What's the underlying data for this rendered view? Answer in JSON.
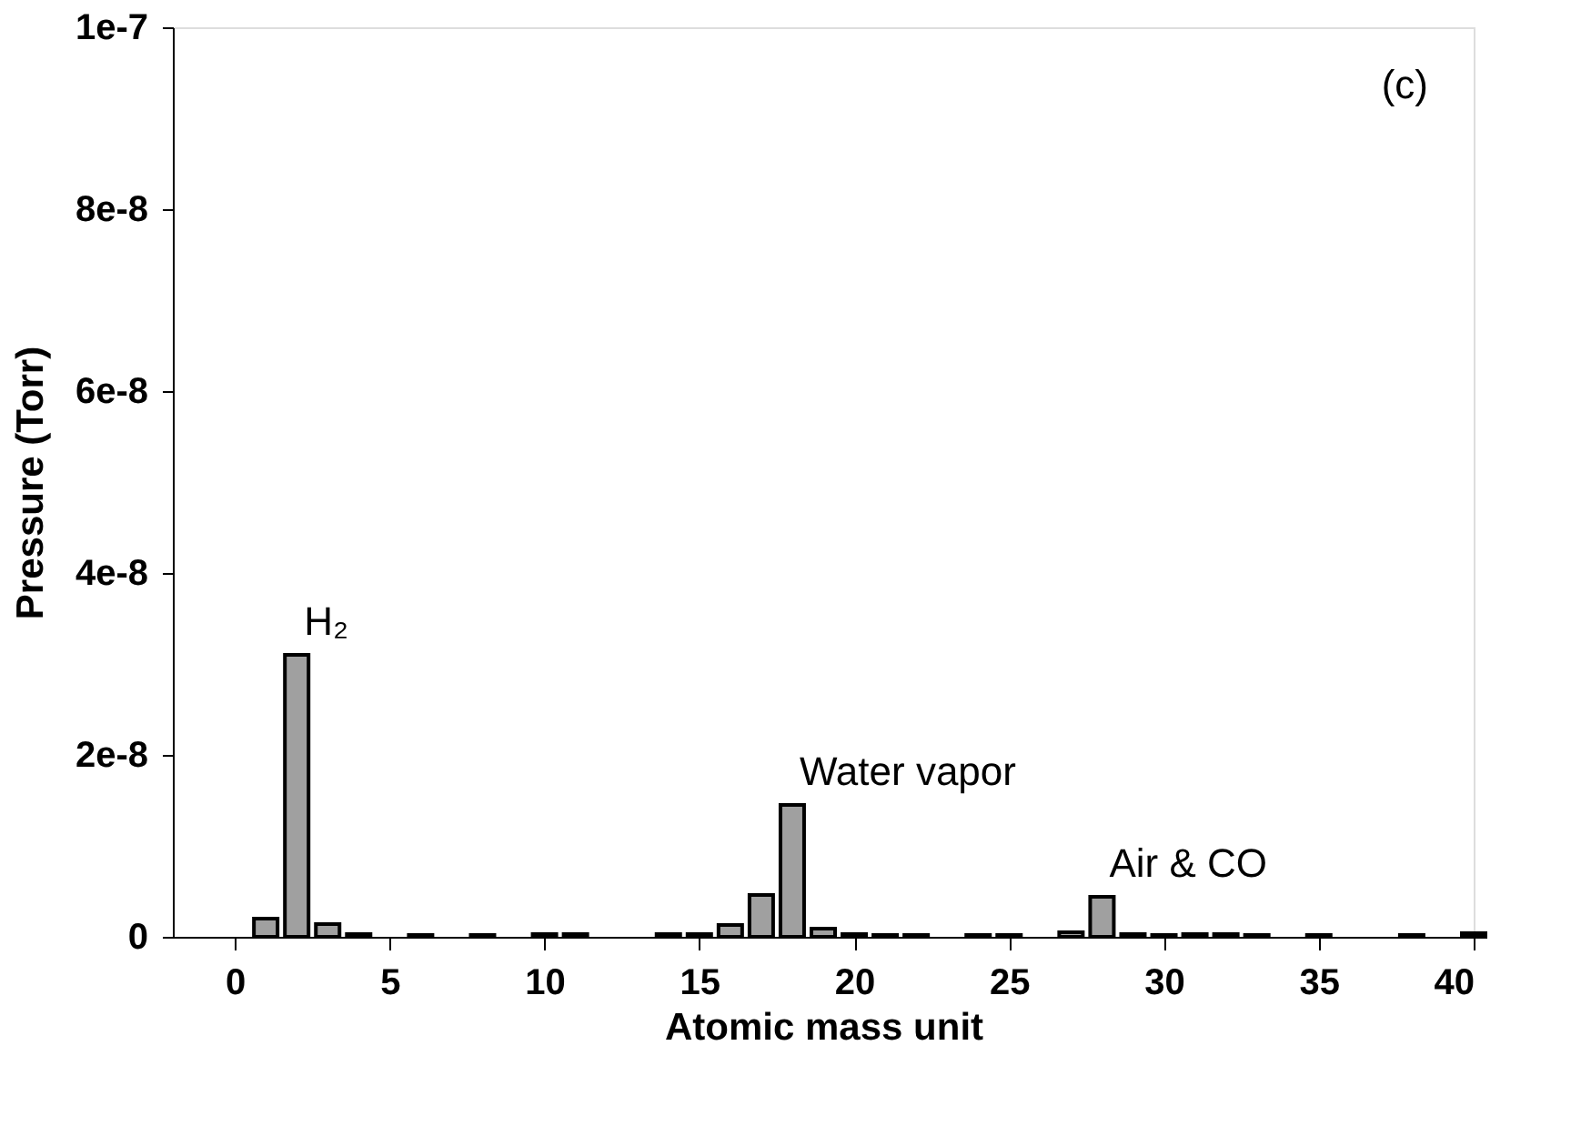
{
  "chart_data": {
    "type": "bar",
    "xlabel": "Atomic mass unit",
    "ylabel": "Pressure (Torr)",
    "x": [
      1,
      2,
      3,
      4,
      6,
      8,
      10,
      11,
      14,
      15,
      16,
      17,
      18,
      19,
      20,
      21,
      22,
      24,
      25,
      27,
      28,
      29,
      30,
      31,
      32,
      33,
      35,
      38,
      40
    ],
    "series": [
      {
        "color": "#a0a0a0",
        "values": [
          2e-09,
          3.1e-08,
          1.4e-09,
          3e-10,
          2e-10,
          2e-10,
          3e-10,
          3e-10,
          3e-10,
          3e-10,
          1.3e-09,
          4.6e-09,
          1.45e-08,
          9e-10,
          3e-10,
          2e-10,
          2e-10,
          2e-10,
          2e-10,
          5e-10,
          4.4e-09,
          3e-10,
          2e-10,
          3e-10,
          3e-10,
          2e-10,
          2e-10,
          2e-10,
          4e-10
        ]
      }
    ],
    "xlim": [
      -2,
      40
    ],
    "xticks": [
      0,
      5,
      10,
      15,
      20,
      25,
      30,
      35,
      40
    ],
    "ylim": [
      0,
      1e-07
    ],
    "yticks": [
      0,
      {
        "value": 2e-08,
        "label": "2e-8"
      },
      {
        "value": 4e-08,
        "label": "4e-8"
      },
      {
        "value": 6e-08,
        "label": "6e-8"
      },
      {
        "value": 8e-08,
        "label": "8e-8"
      },
      {
        "value": 1e-07,
        "label": "1e-7"
      }
    ],
    "annotations": [
      "(c)",
      {
        "text": "H₂",
        "x": 2,
        "y": 3.1e-08
      },
      {
        "text": "Water vapor",
        "x": 18,
        "y": 1.45e-08
      },
      {
        "text": "Air & CO",
        "x": 28,
        "y": 4.4e-09
      }
    ],
    "grid": false
  }
}
